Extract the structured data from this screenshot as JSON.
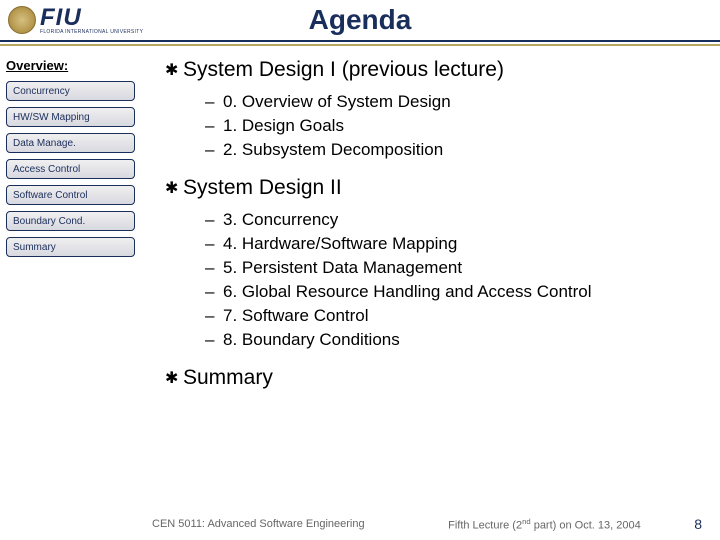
{
  "header": {
    "logo_main": "FIU",
    "logo_sub": "FLORIDA INTERNATIONAL UNIVERSITY",
    "title": "Agenda"
  },
  "sidebar": {
    "label": "Overview:",
    "items": [
      "Concurrency",
      "HW/SW Mapping",
      "Data Manage.",
      "Access Control",
      "Software Control",
      "Boundary Cond.",
      "Summary"
    ]
  },
  "content": {
    "sections": [
      {
        "title": "System Design I (previous lecture)",
        "items": [
          "0. Overview of System Design",
          "1. Design Goals",
          "2. Subsystem Decomposition"
        ]
      },
      {
        "title": "System Design II",
        "items": [
          "3. Concurrency",
          "4. Hardware/Software Mapping",
          "5. Persistent Data Management",
          "6. Global Resource Handling and Access Control",
          "7. Software Control",
          "8. Boundary Conditions"
        ]
      },
      {
        "title": "Summary",
        "items": []
      }
    ]
  },
  "footer": {
    "left": "CEN 5011: Advanced Software Engineering",
    "mid_prefix": "Fifth Lecture (2",
    "mid_sup": "nd",
    "mid_suffix": " part) on Oct. 13, 2004",
    "page": "8"
  },
  "colors": {
    "brand_dark": "#1a2e5c",
    "accent_gold": "#b8a560",
    "text": "#000000",
    "footer_text": "#666666",
    "background": "#ffffff"
  }
}
